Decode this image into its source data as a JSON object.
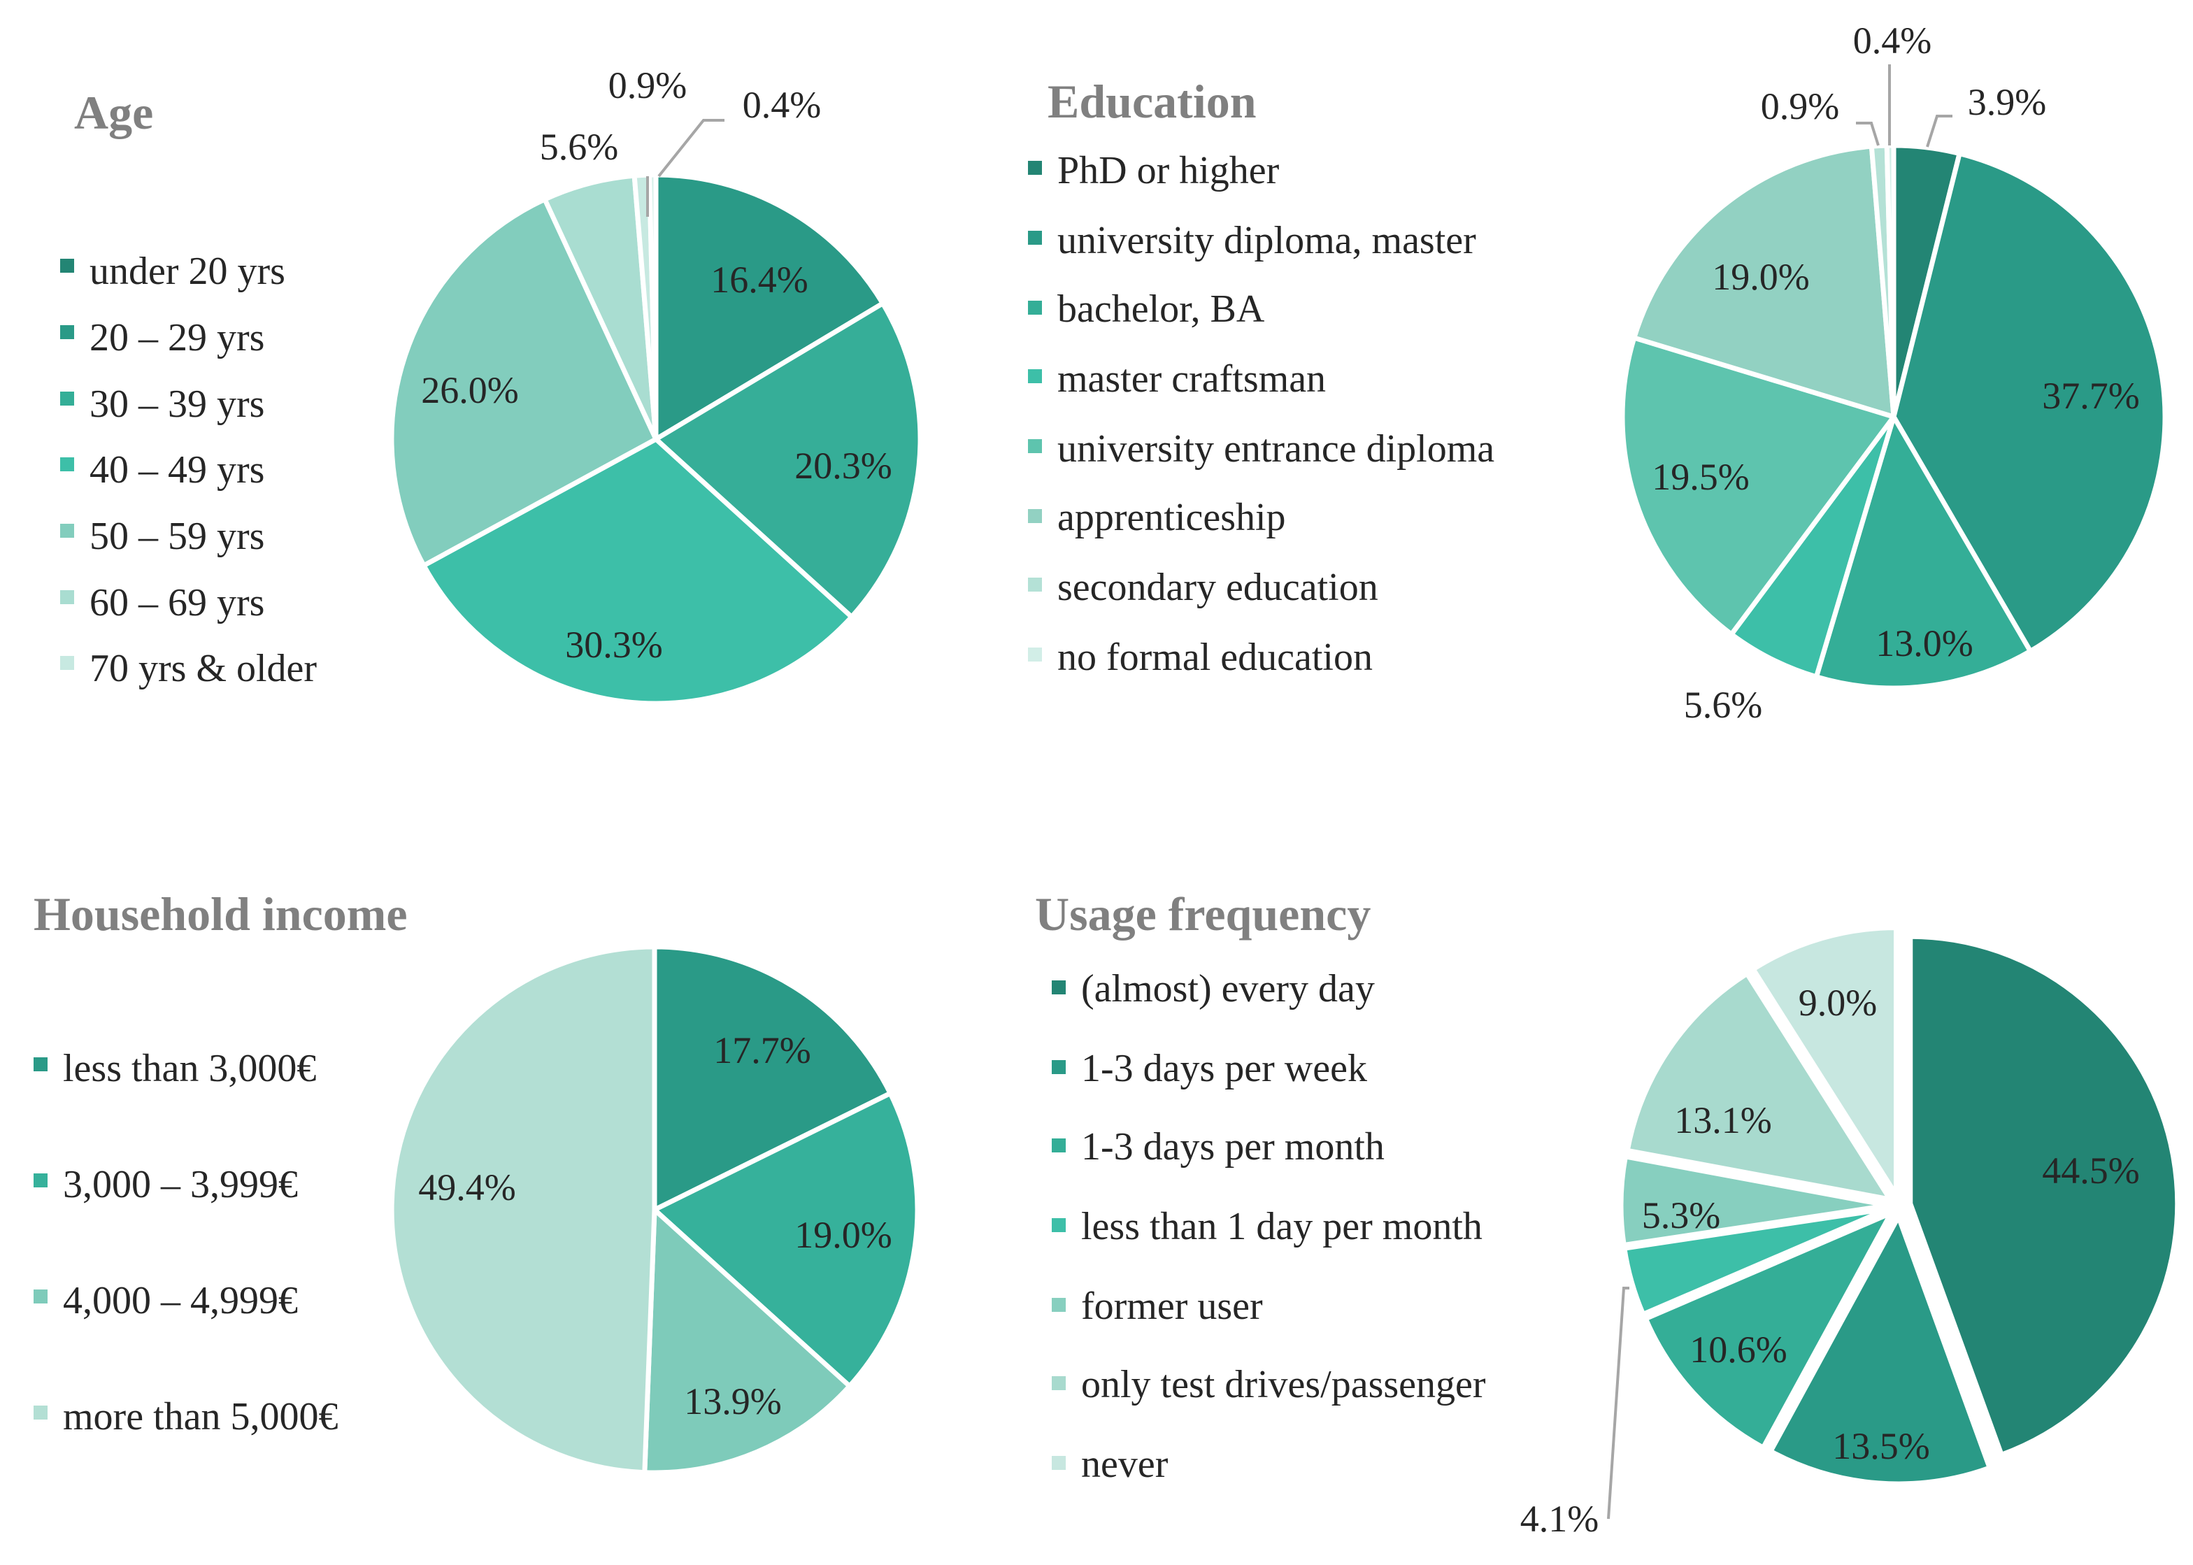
{
  "chart_data": [
    {
      "type": "pie",
      "title": "Age",
      "categories": [
        "under 20 yrs",
        "20 – 29 yrs",
        "30 – 39 yrs",
        "40 – 49 yrs",
        "50 – 59 yrs",
        "60 – 69 yrs",
        "70 yrs & older"
      ],
      "values": [
        16.4,
        20.3,
        30.3,
        26.0,
        5.6,
        0.9,
        0.4
      ],
      "slice_order": [
        0,
        1,
        2,
        3,
        4,
        5,
        6
      ],
      "labels": [
        "16.4%",
        "20.3%",
        "30.3%",
        "26.0%",
        "5.6%",
        "0.9%",
        "0.4%"
      ],
      "colors": [
        "#2A9A87",
        "#36AE98",
        "#3DBFA8",
        "#82CDBD",
        "#A9DDD1",
        "#C7E9E1",
        "#D9F1EB"
      ],
      "legend_colors": [
        "#238574",
        "#2A9A87",
        "#34AE97",
        "#3DBFA8",
        "#82CDBD",
        "#A9DDD1",
        "#C7E9E1"
      ],
      "legend_position": "left"
    },
    {
      "type": "pie",
      "title": "Education",
      "categories": [
        "PhD or higher",
        "university diploma, master",
        "bachelor, BA",
        "master craftsman",
        "university entrance diploma",
        "apprenticeship",
        "secondary education",
        "no formal education"
      ],
      "values": [
        3.9,
        37.7,
        13.0,
        5.6,
        19.5,
        19.0,
        0.9,
        0.4
      ],
      "labels": [
        "3.9%",
        "37.7%",
        "13.0%",
        "5.6%",
        "19.5%",
        "19.0%",
        "0.9%",
        "0.4%"
      ],
      "colors": [
        "#238574",
        "#2A9A87",
        "#34AE97",
        "#3DBFA8",
        "#5EC4AE",
        "#92D1C2",
        "#B4E1D6",
        "#D2EEE7"
      ],
      "legend_position": "left"
    },
    {
      "type": "pie",
      "title": "Household income",
      "categories": [
        "less than 3,000€",
        "3,000 – 3,999€",
        "4,000 – 4,999€",
        "more than 5,000€"
      ],
      "values": [
        17.7,
        19.0,
        13.9,
        49.4
      ],
      "labels": [
        "17.7%",
        "19.0%",
        "13.9%",
        "49.4%"
      ],
      "colors": [
        "#2A9A87",
        "#36B19B",
        "#7ECBBA",
        "#B3DFD4"
      ],
      "legend_position": "left"
    },
    {
      "type": "pie",
      "title": "Usage frequency",
      "categories": [
        "(almost) every day",
        "1-3 days per week",
        "1-3 days per month",
        "less than 1 day per month",
        "former user",
        "only test drives/passenger",
        "never"
      ],
      "values": [
        44.5,
        13.5,
        10.6,
        4.1,
        5.3,
        13.1,
        9.0
      ],
      "labels": [
        "44.5%",
        "13.5%",
        "10.6%",
        "4.1%",
        "5.3%",
        "13.1%",
        "9.0%"
      ],
      "colors": [
        "#238574",
        "#2A9A87",
        "#34AE97",
        "#3DBFA8",
        "#87CFBF",
        "#A8DACE",
        "#C7E7E0"
      ],
      "legend_position": "left",
      "exploded": true
    }
  ]
}
